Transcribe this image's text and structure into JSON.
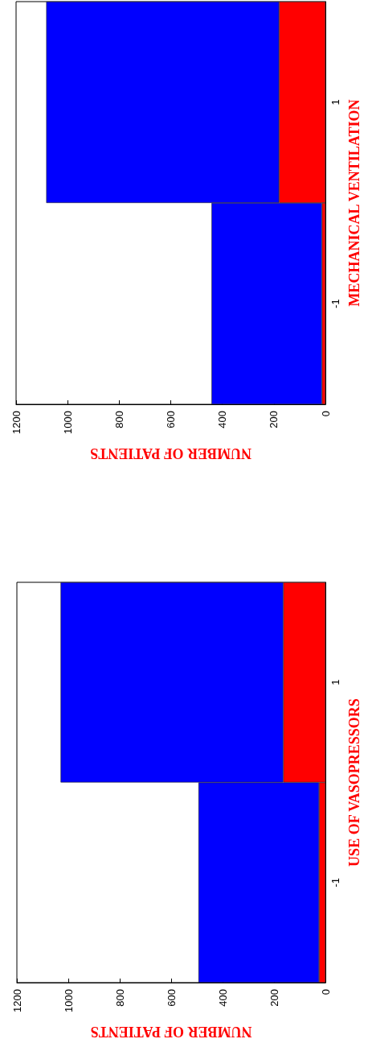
{
  "chart_data": [
    {
      "type": "bar",
      "orientation": "horizontal",
      "stacked": true,
      "xlabel": "NUMBER OF PATIENTS",
      "ylabel": "MECHANICAL VENTILATION",
      "categories": [
        "1",
        "-1"
      ],
      "series": [
        {
          "color": "#ff0000",
          "values": [
            180,
            14
          ]
        },
        {
          "color": "#0000ff",
          "values": [
            903,
            428
          ]
        }
      ],
      "xlim": [
        1200,
        0
      ],
      "xticks": [
        0,
        200,
        400,
        600,
        800,
        1000,
        1200
      ],
      "grid": false
    },
    {
      "type": "bar",
      "orientation": "horizontal",
      "stacked": true,
      "xlabel": "NUMBER OF PATIENTS",
      "ylabel": "USE OF VASOPRESSORS",
      "categories": [
        "1",
        "-1"
      ],
      "series": [
        {
          "color": "#ff0000",
          "values": [
            164,
            25
          ]
        },
        {
          "color": "#0000ff",
          "values": [
            866,
            469
          ]
        }
      ],
      "xlim": [
        1200,
        0
      ],
      "xticks": [
        0,
        200,
        400,
        600,
        800,
        1000,
        1200
      ],
      "grid": false
    }
  ]
}
